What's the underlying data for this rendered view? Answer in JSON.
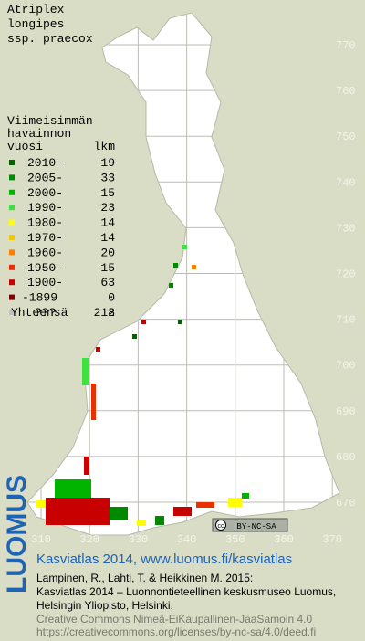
{
  "title": [
    "Atriplex",
    "longipes",
    "ssp. praecox"
  ],
  "legend": {
    "heading": [
      "Viimeisimmän",
      "havainnon"
    ],
    "col_year": "vuosi",
    "col_count": "lkm",
    "rows": [
      {
        "label": "2010-",
        "count": 19,
        "color": "#006400"
      },
      {
        "label": "2005-",
        "count": 33,
        "color": "#008a00"
      },
      {
        "label": "2000-",
        "count": 15,
        "color": "#00b400"
      },
      {
        "label": "1990-",
        "count": 23,
        "color": "#40e040"
      },
      {
        "label": "1980-",
        "count": 14,
        "color": "#ffff00"
      },
      {
        "label": "1970-",
        "count": 14,
        "color": "#f0c800"
      },
      {
        "label": "1960-",
        "count": 20,
        "color": "#ff8000"
      },
      {
        "label": "1950-",
        "count": 15,
        "color": "#e83000"
      },
      {
        "label": "1900-",
        "count": 63,
        "color": "#c80000"
      },
      {
        "label": "-1899",
        "count": 0,
        "color": "#800000"
      },
      {
        "label": "???",
        "count": 2,
        "color": "#c0c0c0"
      }
    ],
    "total_label": "Yhteensä",
    "total": 218
  },
  "map": {
    "xticks": [
      310,
      320,
      330,
      340,
      350,
      360,
      370
    ],
    "yticks": [
      770,
      760,
      750,
      740,
      730,
      720,
      710,
      700,
      690,
      680,
      670
    ]
  },
  "license_badge": {
    "cc": "cc",
    "text": "BY-NC-SA"
  },
  "footer": {
    "brand": "LUOMUS",
    "headline": "Kasviatlas 2014, www.luomus.fi/kasviatlas",
    "citation": [
      "Lampinen, R., Lahti, T. & Heikkinen M. 2015:",
      "Kasviatlas 2014 – Luonnontieteellinen keskusmuseo Luomus,",
      "Helsingin Yliopisto, Helsinki."
    ],
    "license": [
      "Creative Commons Nimeä-EiKaupallinen-JaaSamoin 4.0",
      "https://creativecommons.org/licenses/by-nc-sa/4.0/deed.fi"
    ]
  }
}
